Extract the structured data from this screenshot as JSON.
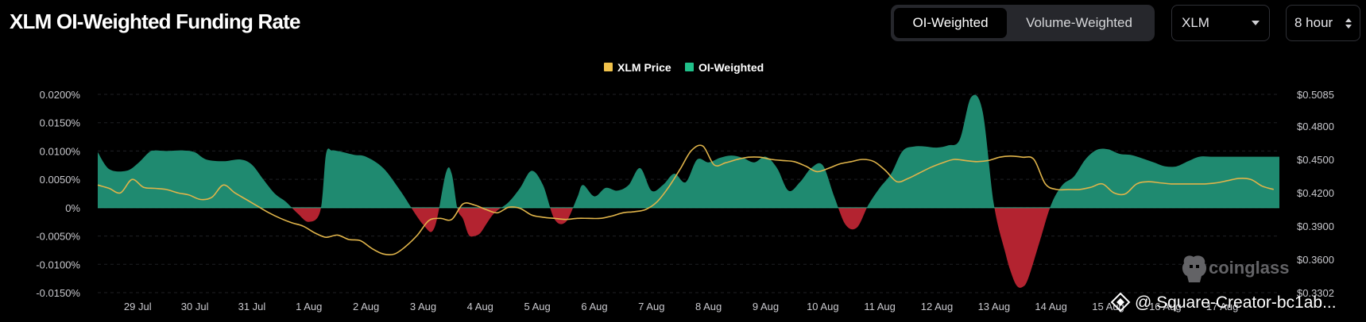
{
  "header": {
    "title": "XLM OI-Weighted Funding Rate",
    "tabs": [
      {
        "label": "OI-Weighted",
        "active": true
      },
      {
        "label": "Volume-Weighted",
        "active": false
      }
    ],
    "coin_select": "XLM",
    "interval_select": "8 hour"
  },
  "watermark": {
    "brand": "coinglass",
    "credit": "@ Square-Creator-bc1ab..."
  },
  "colors": {
    "background": "#000000",
    "positive_fill": "#1f8a70",
    "negative_fill": "#b32330",
    "price_line": "#e0b44a",
    "legend_price": "#f0c24b",
    "legend_oi": "#20c08a"
  },
  "chart_data": {
    "type": "area",
    "legend": [
      {
        "name": "XLM Price",
        "color": "#f0c24b"
      },
      {
        "name": "OI-Weighted",
        "color": "#20c08a"
      }
    ],
    "legend_position": "top-center",
    "grid": "horizontal-dashed",
    "x_labels": [
      "29 Jul",
      "30 Jul",
      "31 Jul",
      "1 Aug",
      "2 Aug",
      "3 Aug",
      "4 Aug",
      "5 Aug",
      "6 Aug",
      "7 Aug",
      "8 Aug",
      "9 Aug",
      "10 Aug",
      "11 Aug",
      "12 Aug",
      "13 Aug",
      "14 Aug",
      "15 Aug",
      "16 Aug",
      "17 Aug"
    ],
    "x_range": [
      28.3,
      49.0
    ],
    "y_left": {
      "range": [
        -0.015,
        0.02
      ],
      "ticks": [
        0.02,
        0.015,
        0.01,
        0.005,
        0,
        -0.005,
        -0.01,
        -0.015
      ],
      "tick_labels": [
        "0.0200%",
        "0.0150%",
        "0.0100%",
        "0.0050%",
        "0%",
        "-0.0050%",
        "-0.0100%",
        "-0.0150%"
      ]
    },
    "y_right": {
      "range": [
        0.3302,
        0.5085
      ],
      "ticks": [
        0.5085,
        0.48,
        0.45,
        0.42,
        0.39,
        0.36,
        0.3302
      ],
      "tick_labels": [
        "$0.5085",
        "$0.4800",
        "$0.4500",
        "$0.4200",
        "$0.3900",
        "$0.3600",
        "$0.3302"
      ]
    },
    "series": [
      {
        "name": "OI-Weighted",
        "axis": "left",
        "x": [
          28.3,
          28.5,
          28.8,
          29.0,
          29.2,
          29.3,
          29.5,
          29.8,
          30.0,
          30.2,
          30.5,
          30.8,
          31.0,
          31.2,
          31.4,
          31.6,
          31.8,
          32.0,
          32.2,
          32.3,
          32.4,
          32.5,
          32.6,
          32.8,
          33.0,
          33.3,
          33.6,
          34.0,
          34.2,
          34.4,
          34.5,
          34.6,
          34.7,
          34.8,
          34.9,
          35.0,
          35.1,
          35.2,
          35.3,
          35.5,
          35.7,
          35.9,
          36.1,
          36.3,
          36.5,
          36.7,
          36.8,
          37.0,
          37.2,
          37.4,
          37.6,
          37.8,
          38.0,
          38.2,
          38.4,
          38.6,
          38.8,
          39.0,
          39.2,
          39.4,
          39.6,
          39.8,
          40.0,
          40.2,
          40.4,
          40.6,
          40.8,
          41.0,
          41.2,
          41.4,
          41.6,
          41.8,
          42.0,
          42.2,
          42.4,
          42.6,
          42.8,
          43.0,
          43.2,
          43.4,
          43.6,
          43.8,
          44.0,
          44.2,
          44.3,
          44.4,
          44.5,
          44.6,
          44.8,
          45.0,
          45.2,
          45.4,
          45.6,
          45.8,
          46.0,
          46.2,
          46.4,
          46.6,
          46.8,
          47.0,
          47.2,
          47.4,
          47.6,
          47.8,
          48.0,
          48.2,
          48.4,
          48.6,
          48.8,
          49.0
        ],
        "values": [
          0.0098,
          0.0068,
          0.0065,
          0.0078,
          0.0098,
          0.0101,
          0.01,
          0.0101,
          0.0098,
          0.0085,
          0.0082,
          0.0085,
          0.0076,
          0.005,
          0.0025,
          0.001,
          -0.001,
          -0.0025,
          -0.0005,
          0.0095,
          0.0101,
          0.01,
          0.0098,
          0.0093,
          0.009,
          0.007,
          0.003,
          -0.003,
          -0.0035,
          0.0062,
          0.006,
          -0.0002,
          -0.002,
          -0.0048,
          -0.005,
          -0.0045,
          -0.003,
          -0.0015,
          -0.0005,
          0.001,
          0.0035,
          0.0065,
          0.004,
          -0.002,
          -0.0025,
          0.0018,
          0.004,
          0.002,
          0.0035,
          0.003,
          0.004,
          0.007,
          0.003,
          0.004,
          0.006,
          0.0045,
          0.0085,
          0.008,
          0.0088,
          0.0092,
          0.0088,
          0.008,
          0.009,
          0.007,
          0.003,
          0.0045,
          0.007,
          0.0075,
          0.002,
          -0.003,
          -0.0035,
          0.0005,
          0.0035,
          0.006,
          0.01,
          0.0108,
          0.0108,
          0.0106,
          0.011,
          0.012,
          0.0195,
          0.017,
          0.0005,
          -0.008,
          -0.0115,
          -0.0138,
          -0.014,
          -0.0125,
          -0.006,
          0.0005,
          0.004,
          0.0055,
          0.0085,
          0.0102,
          0.0103,
          0.0095,
          0.0093,
          0.0087,
          0.008,
          0.0073,
          0.0073,
          0.0082,
          0.009,
          0.009,
          0.009,
          0.009,
          0.009,
          0.009,
          0.009,
          0.009
        ]
      },
      {
        "name": "XLM Price",
        "axis": "right",
        "x": [
          28.3,
          28.5,
          28.7,
          28.9,
          29.1,
          29.3,
          29.5,
          29.7,
          29.9,
          30.1,
          30.3,
          30.5,
          30.7,
          30.9,
          31.1,
          31.3,
          31.5,
          31.7,
          31.9,
          32.1,
          32.3,
          32.5,
          32.7,
          32.9,
          33.1,
          33.3,
          33.5,
          33.7,
          33.9,
          34.1,
          34.3,
          34.5,
          34.7,
          34.9,
          35.1,
          35.3,
          35.5,
          35.7,
          35.9,
          36.1,
          36.3,
          36.5,
          36.7,
          36.9,
          37.1,
          37.3,
          37.5,
          37.7,
          37.9,
          38.1,
          38.3,
          38.5,
          38.7,
          38.9,
          39.1,
          39.3,
          39.5,
          39.7,
          39.9,
          40.1,
          40.3,
          40.5,
          40.7,
          40.9,
          41.1,
          41.3,
          41.5,
          41.7,
          41.9,
          42.1,
          42.3,
          42.5,
          42.7,
          42.9,
          43.1,
          43.3,
          43.5,
          43.7,
          43.9,
          44.1,
          44.3,
          44.5,
          44.7,
          44.9,
          45.1,
          45.3,
          45.5,
          45.7,
          45.9,
          46.1,
          46.3,
          46.5,
          46.7,
          46.9,
          47.1,
          47.3,
          47.5,
          47.7,
          47.9,
          48.1,
          48.3,
          48.5,
          48.7,
          48.9
        ],
        "values": [
          0.427,
          0.424,
          0.42,
          0.432,
          0.425,
          0.424,
          0.423,
          0.42,
          0.418,
          0.414,
          0.416,
          0.427,
          0.42,
          0.414,
          0.408,
          0.402,
          0.397,
          0.393,
          0.39,
          0.384,
          0.38,
          0.382,
          0.378,
          0.377,
          0.37,
          0.365,
          0.365,
          0.372,
          0.382,
          0.395,
          0.397,
          0.396,
          0.41,
          0.409,
          0.405,
          0.402,
          0.407,
          0.406,
          0.4,
          0.398,
          0.397,
          0.396,
          0.397,
          0.397,
          0.397,
          0.399,
          0.402,
          0.403,
          0.405,
          0.412,
          0.425,
          0.441,
          0.458,
          0.462,
          0.445,
          0.447,
          0.45,
          0.452,
          0.452,
          0.45,
          0.449,
          0.448,
          0.444,
          0.439,
          0.442,
          0.446,
          0.448,
          0.45,
          0.448,
          0.44,
          0.43,
          0.433,
          0.438,
          0.443,
          0.447,
          0.45,
          0.449,
          0.448,
          0.449,
          0.452,
          0.453,
          0.452,
          0.45,
          0.428,
          0.423,
          0.423,
          0.423,
          0.425,
          0.428,
          0.42,
          0.419,
          0.428,
          0.43,
          0.429,
          0.428,
          0.428,
          0.428,
          0.428,
          0.429,
          0.431,
          0.433,
          0.432,
          0.426,
          0.423
        ]
      }
    ]
  }
}
